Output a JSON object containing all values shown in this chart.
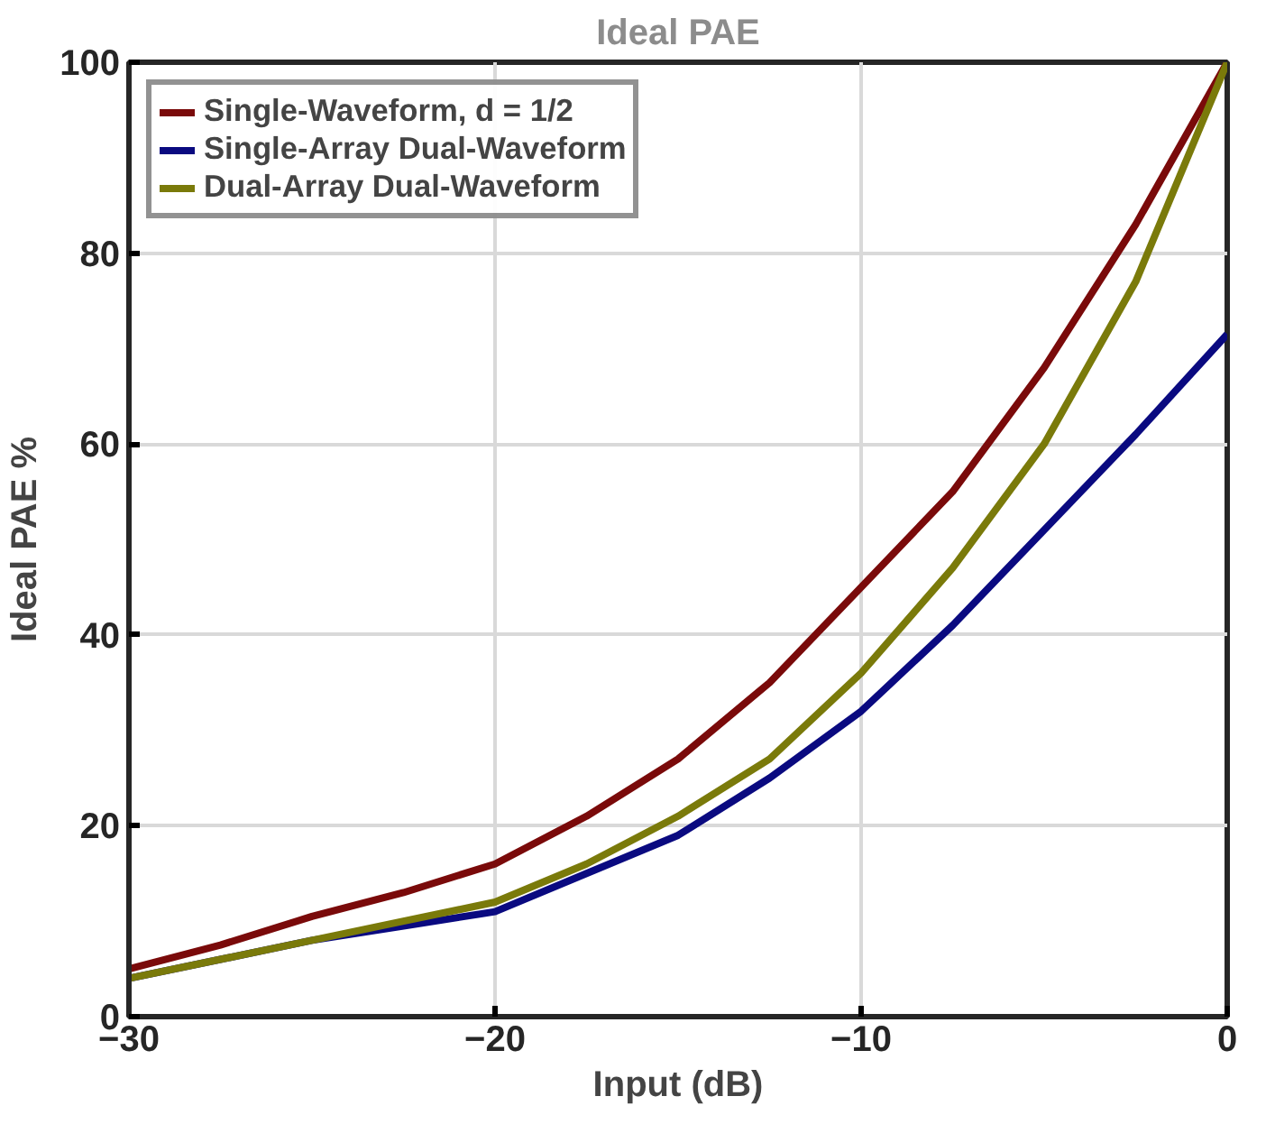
{
  "chart_data": {
    "type": "line",
    "title": "Ideal PAE",
    "xlabel": "Input (dB)",
    "ylabel": "Ideal PAE %",
    "x": [
      -30,
      -27.5,
      -25,
      -22.5,
      -20,
      -17.5,
      -15,
      -12.5,
      -10,
      -7.5,
      -5,
      -2.5,
      0
    ],
    "series": [
      {
        "name": "Single-Waveform, d = 1/2",
        "color": "#7a0a0a",
        "values": [
          5,
          7.5,
          10.5,
          13,
          16,
          21,
          27,
          35,
          45,
          55,
          68,
          83,
          100
        ]
      },
      {
        "name": "Single-Array Dual-Waveform",
        "color": "#0a0a80",
        "values": [
          4,
          6,
          8,
          9.5,
          11,
          15,
          19,
          25,
          32,
          41,
          51,
          61,
          71.5
        ]
      },
      {
        "name": "Dual-Array Dual-Waveform",
        "color": "#7a7a0a",
        "values": [
          4,
          6,
          8,
          10,
          12,
          16,
          21,
          27,
          36,
          47,
          60,
          77,
          100
        ]
      }
    ],
    "xlim": [
      -30,
      0
    ],
    "ylim": [
      0,
      100
    ],
    "xticks": [
      -30,
      -20,
      -10,
      0
    ],
    "yticks": [
      0,
      20,
      40,
      60,
      80,
      100
    ],
    "grid": true,
    "legend": "top left",
    "line_style": "solid"
  }
}
